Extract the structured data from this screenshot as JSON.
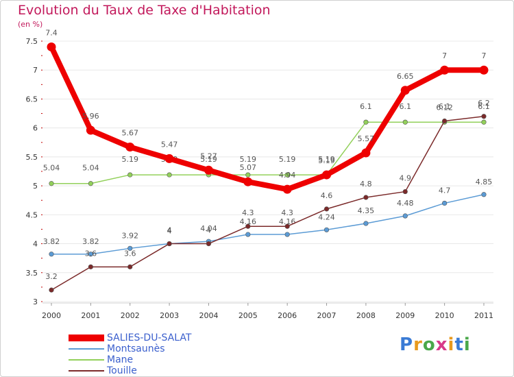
{
  "title": "Evolution du Taux de Taxe d'Habitation",
  "unit_note": "(en %)",
  "logo_text": "Proxiti",
  "colors": {
    "SALIES-DU-SALAT": "#ee0000",
    "Montsaunès": "#5b9bd5",
    "Mane": "#92d05a",
    "Touille": "#7b2a2a",
    "grid": "#e8e8e8",
    "tick": "#c00000"
  },
  "chart_data": {
    "type": "line",
    "x": [
      "2000",
      "2001",
      "2002",
      "2003",
      "2004",
      "2005",
      "2006",
      "2007",
      "2008",
      "2009",
      "2010",
      "2011"
    ],
    "ylim": [
      3,
      7.5
    ],
    "yticks": [
      "3",
      "3.5",
      "4",
      "4.5",
      "5",
      "5.5",
      "6",
      "6.5",
      "7",
      "7.5"
    ],
    "series": [
      {
        "name": "SALIES-DU-SALAT",
        "values": [
          7.4,
          5.96,
          5.67,
          5.47,
          5.27,
          5.07,
          4.94,
          5.19,
          5.57,
          6.65,
          7,
          7
        ],
        "labels": [
          "7.4",
          "5.96",
          "5.67",
          "5.47",
          "5.27",
          "5.07",
          "4.94",
          "5.19",
          "5.57",
          "6.65",
          "7",
          "7"
        ]
      },
      {
        "name": "Montsaunès",
        "values": [
          3.82,
          3.82,
          3.92,
          4,
          4.04,
          4.16,
          4.16,
          4.24,
          4.35,
          4.48,
          4.7,
          4.85
        ],
        "labels": [
          "3.82",
          "3.82",
          "3.92",
          "4",
          "4.04",
          "4.16",
          "4.16",
          "4.24",
          "4.35",
          "4.48",
          "4.7",
          "4.85"
        ]
      },
      {
        "name": "Mane",
        "values": [
          5.04,
          5.04,
          5.19,
          5.19,
          5.19,
          5.19,
          5.19,
          5.19,
          6.1,
          6.1,
          6.1,
          6.1
        ],
        "labels": [
          "5.04",
          "5.04",
          "5.19",
          "5.19",
          "5.19",
          "5.19",
          "5.19",
          "5.19",
          "6.1",
          "6.1",
          "6.1",
          "6.1"
        ]
      },
      {
        "name": "Touille",
        "values": [
          3.2,
          3.6,
          3.6,
          4,
          4,
          4.3,
          4.3,
          4.6,
          4.8,
          4.9,
          6.12,
          6.2
        ],
        "labels": [
          "3.2",
          "3.6",
          "3.6",
          "4",
          "4",
          "4.3",
          "4.3",
          "4.6",
          "4.8",
          "4.9",
          "6.12",
          "6.2"
        ]
      }
    ]
  }
}
